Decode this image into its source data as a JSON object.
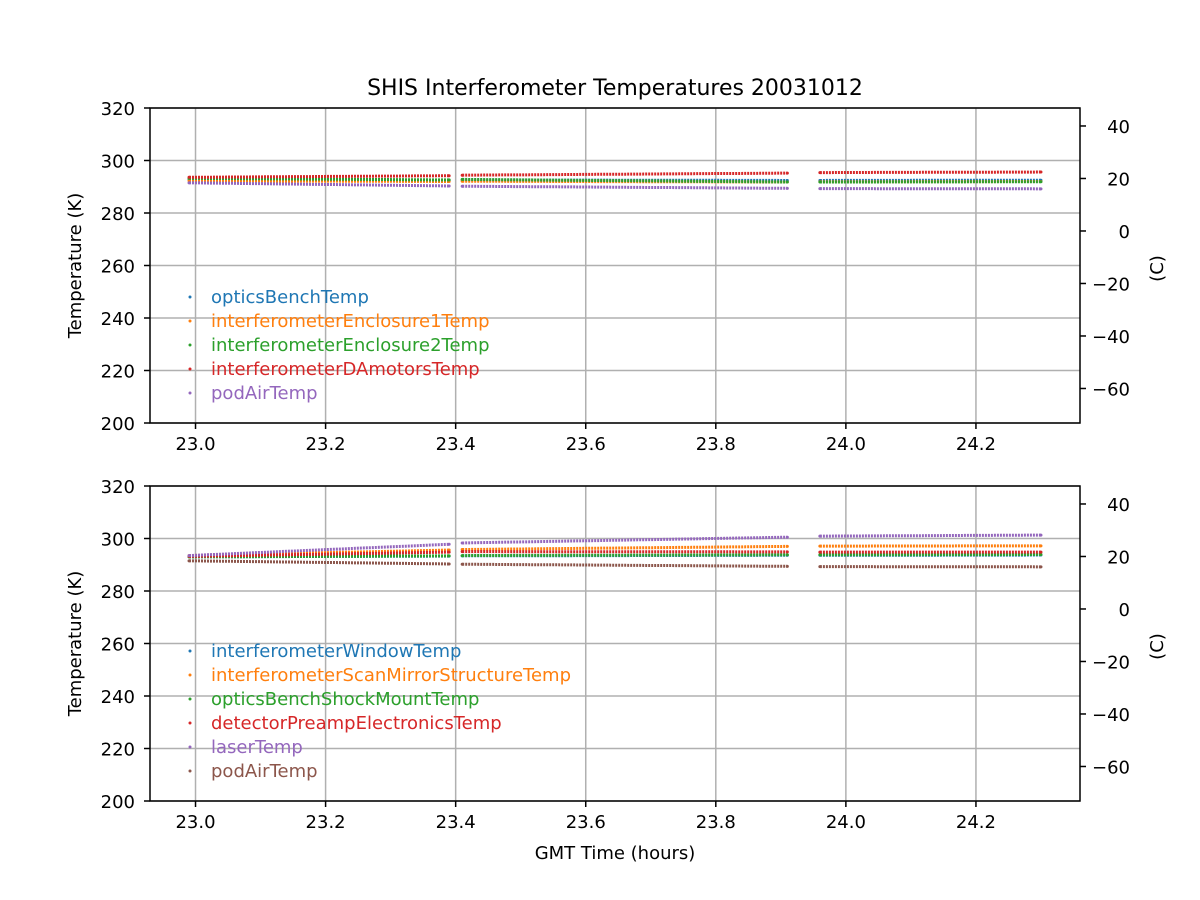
{
  "title": "SHIS Interferometer Temperatures 20031012",
  "xlabel": "GMT Time (hours)",
  "ylabel": "Temperature (K)",
  "y2label": "(C)",
  "chart_data": [
    {
      "type": "scatter",
      "title": "SHIS Interferometer Temperatures 20031012",
      "xlabel": "",
      "ylabel": "Temperature (K)",
      "y2label": "(C)",
      "xlim": [
        22.93,
        24.36
      ],
      "ylim": [
        200,
        320
      ],
      "y2lim": [
        -73.15,
        46.85
      ],
      "x_ticks": [
        23.0,
        23.2,
        23.4,
        23.6,
        23.8,
        24.0,
        24.2
      ],
      "x_tick_labels": [
        "23.0",
        "23.2",
        "23.4",
        "23.6",
        "23.8",
        "24.0",
        "24.2"
      ],
      "y_ticks": [
        200,
        220,
        240,
        260,
        280,
        300,
        320
      ],
      "y_tick_labels": [
        "200",
        "220",
        "240",
        "260",
        "280",
        "300",
        "320"
      ],
      "y2_ticks": [
        -60,
        -40,
        -20,
        0,
        20,
        40
      ],
      "y2_tick_labels": [
        "−60",
        "−40",
        "−20",
        "0",
        "20",
        "40"
      ],
      "grid": true,
      "legend_position": "lower-left",
      "segments": [
        [
          22.99,
          23.39
        ],
        [
          23.41,
          23.91
        ],
        [
          23.96,
          24.3
        ]
      ],
      "series": [
        {
          "name": "opticsBenchTemp",
          "color": "#1f77b4",
          "x": [
            22.99,
            23.39,
            23.41,
            23.91,
            23.96,
            24.3
          ],
          "values": [
            292.8,
            292.5,
            292.6,
            292.4,
            292.4,
            292.5
          ]
        },
        {
          "name": "interferometerEnclosure1Temp",
          "color": "#ff7f0e",
          "x": [
            22.99,
            23.39,
            23.41,
            23.91,
            23.96,
            24.3
          ],
          "values": [
            292.3,
            292.0,
            292.1,
            291.8,
            291.9,
            292.0
          ]
        },
        {
          "name": "interferometerEnclosure2Temp",
          "color": "#2ca02c",
          "x": [
            22.99,
            23.39,
            23.41,
            23.91,
            23.96,
            24.3
          ],
          "values": [
            293.2,
            292.6,
            292.8,
            291.8,
            291.8,
            291.9
          ]
        },
        {
          "name": "interferometerDAmotorsTemp",
          "color": "#d62728",
          "x": [
            22.99,
            23.39,
            23.41,
            23.91,
            23.96,
            24.3
          ],
          "values": [
            293.6,
            294.2,
            294.4,
            295.2,
            295.4,
            295.6
          ]
        },
        {
          "name": "podAirTemp",
          "color": "#9467bd",
          "x": [
            22.99,
            23.39,
            23.41,
            23.91,
            23.96,
            24.3
          ],
          "values": [
            291.5,
            290.3,
            290.2,
            289.4,
            289.3,
            289.2
          ]
        }
      ]
    },
    {
      "type": "scatter",
      "title": "",
      "xlabel": "GMT Time (hours)",
      "ylabel": "Temperature (K)",
      "y2label": "(C)",
      "xlim": [
        22.93,
        24.36
      ],
      "ylim": [
        200,
        320
      ],
      "y2lim": [
        -73.15,
        46.85
      ],
      "x_ticks": [
        23.0,
        23.2,
        23.4,
        23.6,
        23.8,
        24.0,
        24.2
      ],
      "x_tick_labels": [
        "23.0",
        "23.2",
        "23.4",
        "23.6",
        "23.8",
        "24.0",
        "24.2"
      ],
      "y_ticks": [
        200,
        220,
        240,
        260,
        280,
        300,
        320
      ],
      "y_tick_labels": [
        "200",
        "220",
        "240",
        "260",
        "280",
        "300",
        "320"
      ],
      "y2_ticks": [
        -60,
        -40,
        -20,
        0,
        20,
        40
      ],
      "y2_tick_labels": [
        "−60",
        "−40",
        "−20",
        "0",
        "20",
        "40"
      ],
      "grid": true,
      "legend_position": "lower-left",
      "segments": [
        [
          22.99,
          23.39
        ],
        [
          23.41,
          23.91
        ],
        [
          23.96,
          24.3
        ]
      ],
      "series": [
        {
          "name": "interferometerWindowTemp",
          "color": "#1f77b4",
          "x": [
            22.99,
            23.39,
            23.41,
            23.91,
            23.96,
            24.3
          ],
          "values": [
            293.0,
            293.3,
            293.4,
            293.6,
            293.6,
            293.7
          ]
        },
        {
          "name": "interferometerScanMirrorStructureTemp",
          "color": "#ff7f0e",
          "x": [
            22.99,
            23.39,
            23.41,
            23.91,
            23.96,
            24.3
          ],
          "values": [
            293.5,
            295.6,
            295.8,
            297.0,
            297.1,
            297.2
          ]
        },
        {
          "name": "opticsBenchShockMountTemp",
          "color": "#2ca02c",
          "x": [
            22.99,
            23.39,
            23.41,
            23.91,
            23.96,
            24.3
          ],
          "values": [
            293.0,
            293.4,
            293.5,
            293.8,
            293.8,
            293.9
          ]
        },
        {
          "name": "detectorPreampElectronicsTemp",
          "color": "#d62728",
          "x": [
            22.99,
            23.39,
            23.41,
            23.91,
            23.96,
            24.3
          ],
          "values": [
            293.2,
            294.8,
            295.0,
            294.9,
            294.8,
            294.8
          ]
        },
        {
          "name": "laserTemp",
          "color": "#9467bd",
          "x": [
            22.99,
            23.39,
            23.41,
            23.91,
            23.96,
            24.3
          ],
          "values": [
            293.5,
            297.8,
            298.3,
            300.5,
            300.9,
            301.3
          ]
        },
        {
          "name": "podAirTemp",
          "color": "#8c564b",
          "x": [
            22.99,
            23.39,
            23.41,
            23.91,
            23.96,
            24.3
          ],
          "values": [
            291.5,
            290.3,
            290.2,
            289.4,
            289.3,
            289.2
          ]
        }
      ]
    }
  ]
}
